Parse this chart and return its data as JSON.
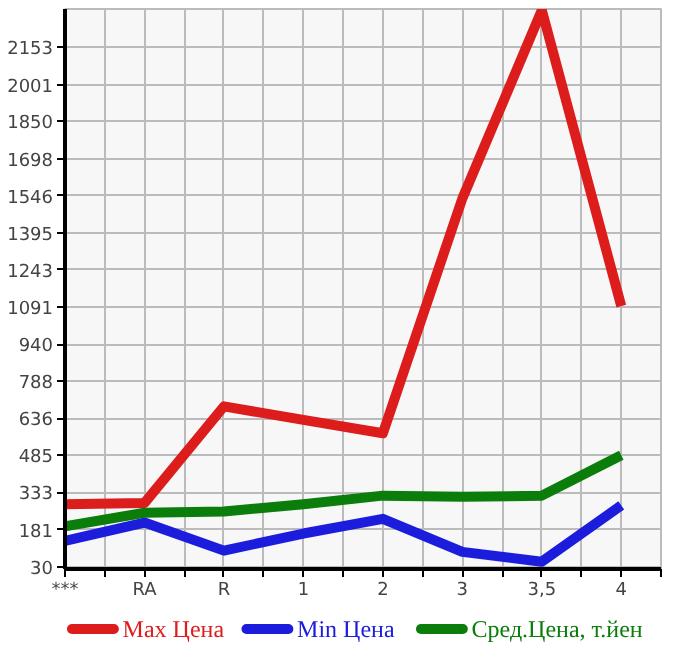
{
  "chart_data": {
    "type": "line",
    "categories": [
      "***",
      "RA",
      "R",
      "1",
      "2",
      "3",
      "3,5",
      "4"
    ],
    "series": [
      {
        "name": "Max Цена",
        "color": "#dd1c1c",
        "values": [
          285,
          290,
          685,
          630,
          575,
          1535,
          2305,
          1095
        ]
      },
      {
        "name": "Min Цена",
        "color": "#1c1cdd",
        "values": [
          135,
          210,
          95,
          165,
          225,
          90,
          50,
          280
        ]
      },
      {
        "name": "Сред.Цена, т.йен",
        "color": "#0a7d0a",
        "values": [
          195,
          250,
          255,
          285,
          320,
          315,
          320,
          485
        ]
      }
    ],
    "ylim": [
      20,
      2310
    ],
    "yticks": [
      30,
      181,
      333,
      485,
      636,
      788,
      940,
      1091,
      1243,
      1395,
      1546,
      1698,
      1850,
      2001,
      2153
    ],
    "grid": true,
    "legend": "bottom",
    "marker": "none",
    "line_style": "solid"
  }
}
